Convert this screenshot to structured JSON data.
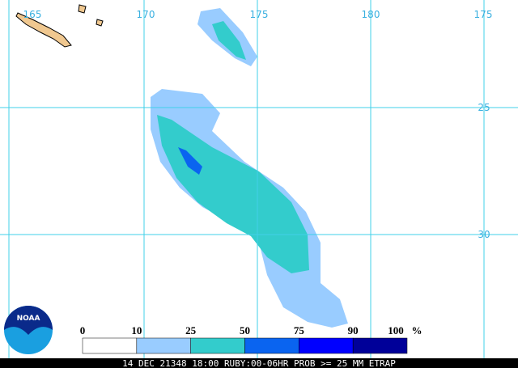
{
  "map": {
    "lon_labels": [
      "165",
      "170",
      "175",
      "180",
      "175"
    ],
    "lat_labels": [
      "25",
      "30"
    ],
    "legend": {
      "labels": [
        "0",
        "10",
        "25",
        "50",
        "75",
        "90",
        "100"
      ],
      "unit": "%",
      "colors": [
        "#ffffff",
        "#99ccff",
        "#33cccc",
        "#0a64f0",
        "#0000ff",
        "#000099"
      ]
    },
    "caption": "14 DEC 21348 18:00 RUBY:00-06HR PROB >= 25 MM ETRAP",
    "logo": "NOAA"
  }
}
